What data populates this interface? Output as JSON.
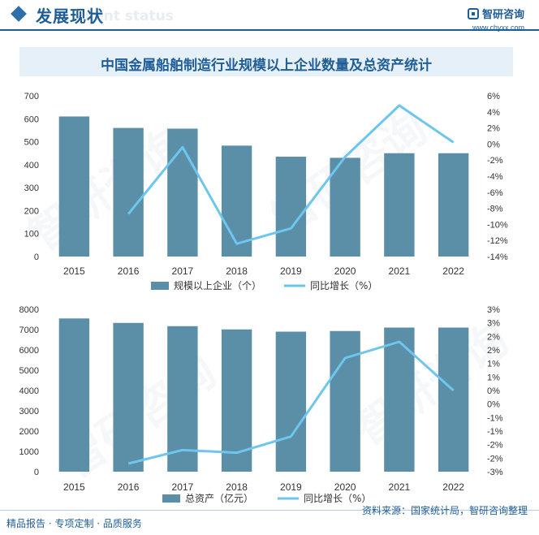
{
  "header": {
    "title": "发展现状",
    "watermark_text": "nent status",
    "brand_name": "智研咨询",
    "brand_url": "www.chyxx.com"
  },
  "chart_title": "中国金属船舶制造行业规模以上企业数量及总资产统计",
  "colors": {
    "bar": "#5b8fa8",
    "line": "#6ec6ee",
    "accent": "#1f5d96"
  },
  "watermark": {
    "text": "智研咨询"
  },
  "chart_data": [
    {
      "type": "bar",
      "categories": [
        "2015",
        "2016",
        "2017",
        "2018",
        "2019",
        "2020",
        "2021",
        "2022"
      ],
      "series": [
        {
          "name": "规模以上企业（个）",
          "type": "bar",
          "axis": "left",
          "values": [
            610,
            560,
            557,
            483,
            435,
            430,
            450,
            450
          ]
        },
        {
          "name": "同比增长（%）",
          "type": "line",
          "axis": "right",
          "values": [
            null,
            -8.7,
            -0.4,
            -12.4,
            -10.5,
            -1.6,
            4.8,
            0.2
          ]
        }
      ],
      "left_axis": {
        "min": 0,
        "max": 700,
        "step": 100,
        "ticks": [
          "0",
          "100",
          "200",
          "300",
          "400",
          "500",
          "600",
          "700"
        ]
      },
      "right_axis": {
        "min": -14,
        "max": 6,
        "step": 2,
        "ticks": [
          "-14%",
          "-12%",
          "-10%",
          "-8%",
          "-6%",
          "-4%",
          "-2%",
          "0%",
          "2%",
          "4%",
          "6%"
        ]
      },
      "legend": {
        "bar_label": "规模以上企业（个）",
        "line_label": "同比增长（%）",
        "position": "bottom"
      }
    },
    {
      "type": "bar",
      "categories": [
        "2015",
        "2016",
        "2017",
        "2018",
        "2019",
        "2020",
        "2021",
        "2022"
      ],
      "series": [
        {
          "name": "总资产（亿元）",
          "type": "bar",
          "axis": "left",
          "values": [
            7550,
            7330,
            7170,
            7010,
            6900,
            6930,
            7100,
            7100
          ]
        },
        {
          "name": "同比增长（%）",
          "type": "line",
          "axis": "right",
          "values": [
            null,
            -2.7,
            -2.2,
            -2.3,
            -1.7,
            1.2,
            1.8,
            0.0
          ]
        }
      ],
      "left_axis": {
        "min": 0,
        "max": 8000,
        "step": 1000,
        "ticks": [
          "0",
          "1000",
          "2000",
          "3000",
          "4000",
          "5000",
          "6000",
          "7000",
          "8000"
        ]
      },
      "right_axis": {
        "min": -3,
        "max": 3,
        "step": 0.5,
        "ticks": [
          "-3%",
          "-2%",
          "-2%",
          "-1%",
          "-1%",
          "0%",
          "0%",
          "1%",
          "1%",
          "2%",
          "2%",
          "3%",
          "3%"
        ]
      },
      "legend": {
        "bar_label": "总资产（亿元）",
        "line_label": "同比增长（%）",
        "position": "bottom"
      }
    }
  ],
  "footer": {
    "left": "精品报告 · 专项定制 · 品质服务",
    "right": "资料来源：国家统计局，智研咨询整理"
  }
}
